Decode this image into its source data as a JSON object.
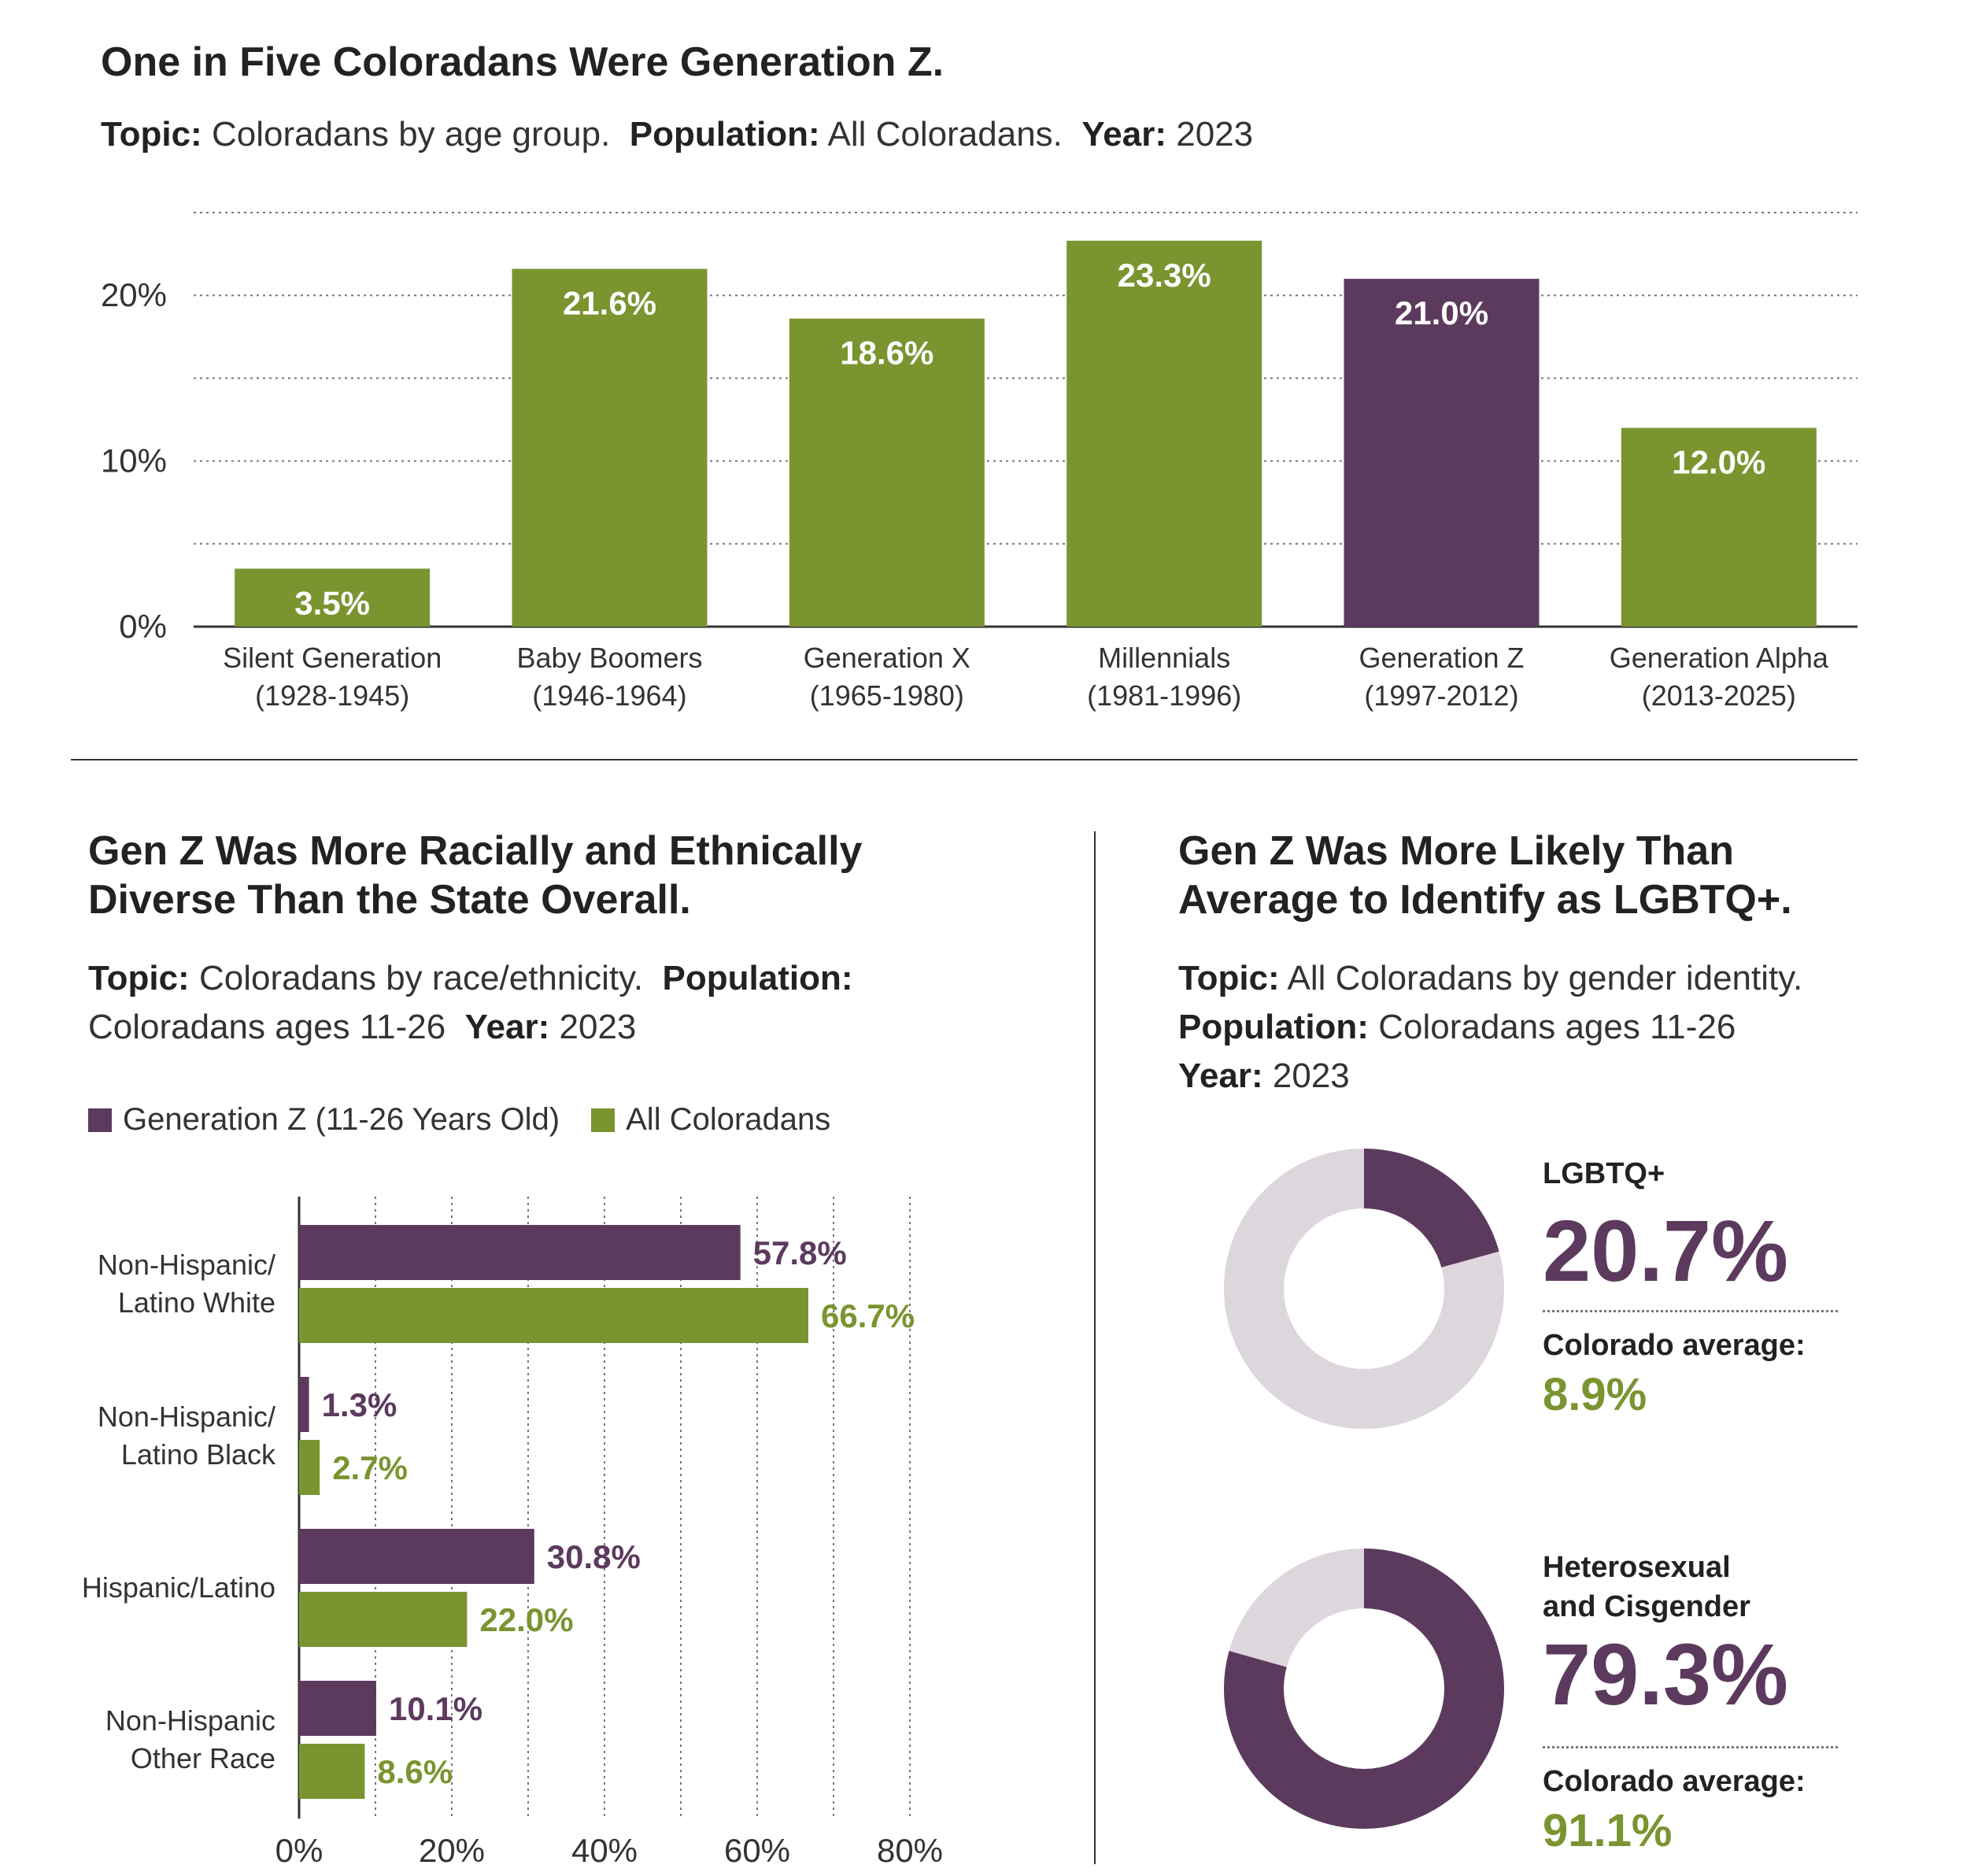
{
  "colors": {
    "purple": "#5c3a5e",
    "green": "#7a9430",
    "light": "#ddd6dd"
  },
  "top": {
    "title": "One in Five Coloradans Were Generation Z.",
    "meta": {
      "topic_label": "Topic:",
      "topic": "Coloradans by age group.",
      "population_label": "Population:",
      "population": "All Coloradans.",
      "year_label": "Year:",
      "year": "2023"
    }
  },
  "left": {
    "title_line1": "Gen Z Was More Racially and Ethnically",
    "title_line2": "Diverse Than the State Overall.",
    "meta": {
      "topic_label": "Topic:",
      "topic": "Coloradans by race/ethnicity.",
      "population_label": "Population:",
      "population": "Coloradans ages 11-26",
      "year_label": "Year:",
      "year": "2023"
    },
    "legend": [
      "Generation Z (11-26 Years Old)",
      "All Coloradans"
    ]
  },
  "right": {
    "title_line1": "Gen Z Was More Likely Than",
    "title_line2": "Average to Identify as LGBTQ+.",
    "meta": {
      "topic_label": "Topic:",
      "topic": "All Coloradans by gender identity.",
      "population_label": "Population:",
      "population": "Coloradans ages 11-26",
      "year_label": "Year:",
      "year": "2023"
    },
    "stats": [
      {
        "label_line1": "LGBTQ+",
        "label_line2": "",
        "value": "20.7%",
        "pct": 20.7,
        "avg_label": "Colorado average:",
        "avg": "8.9%"
      },
      {
        "label_line1": "Heterosexual",
        "label_line2": "and Cisgender",
        "value": "79.3%",
        "pct": 79.3,
        "avg_label": "Colorado average:",
        "avg": "91.1%"
      }
    ]
  },
  "chart_data": [
    {
      "type": "bar",
      "title": "One in Five Coloradans Were Generation Z.",
      "categories": [
        [
          "Silent Generation",
          "(1928-1945)"
        ],
        [
          "Baby Boomers",
          "(1946-1964)"
        ],
        [
          "Generation X",
          "(1965-1980)"
        ],
        [
          "Millennials",
          "(1981-1996)"
        ],
        [
          "Generation Z",
          "(1997-2012)"
        ],
        [
          "Generation Alpha",
          "(2013-2025)"
        ]
      ],
      "values": [
        3.5,
        21.6,
        18.6,
        23.3,
        21.0,
        12.0
      ],
      "value_labels": [
        "3.5%",
        "21.6%",
        "18.6%",
        "23.3%",
        "21.0%",
        "12.0%"
      ],
      "highlight_index": 4,
      "ylim": [
        0,
        25
      ],
      "yticks": [
        0,
        10,
        20
      ],
      "ytick_labels": [
        "0%",
        "10%",
        "20%"
      ],
      "grid": [
        5,
        10,
        15,
        20,
        25
      ]
    },
    {
      "type": "bar",
      "orientation": "horizontal",
      "title": "Gen Z Was More Racially and Ethnically Diverse Than the State Overall.",
      "categories": [
        [
          "Non-Hispanic/",
          "Latino White"
        ],
        [
          "Non-Hispanic/",
          "Latino Black"
        ],
        [
          "Hispanic/Latino"
        ],
        [
          "Non-Hispanic",
          "Other Race"
        ]
      ],
      "series": [
        {
          "name": "Generation Z (11-26 Years Old)",
          "values": [
            57.8,
            1.3,
            30.8,
            10.1
          ],
          "labels": [
            "57.8%",
            "1.3%",
            "30.8%",
            "10.1%"
          ]
        },
        {
          "name": "All Coloradans",
          "values": [
            66.7,
            2.7,
            22.0,
            8.6
          ],
          "labels": [
            "66.7%",
            "2.7%",
            "22.0%",
            "8.6%"
          ]
        }
      ],
      "xlim": [
        0,
        80
      ],
      "xticks": [
        0,
        20,
        40,
        60,
        80
      ],
      "xtick_labels": [
        "0%",
        "20%",
        "40%",
        "60%",
        "80%"
      ],
      "grid": [
        10,
        20,
        30,
        40,
        50,
        60,
        70,
        80
      ]
    },
    {
      "type": "pie",
      "style": "donut",
      "charts": [
        {
          "name": "LGBTQ+",
          "values": [
            20.7,
            79.3
          ]
        },
        {
          "name": "Heterosexual and Cisgender",
          "values": [
            79.3,
            20.7
          ]
        }
      ]
    }
  ]
}
